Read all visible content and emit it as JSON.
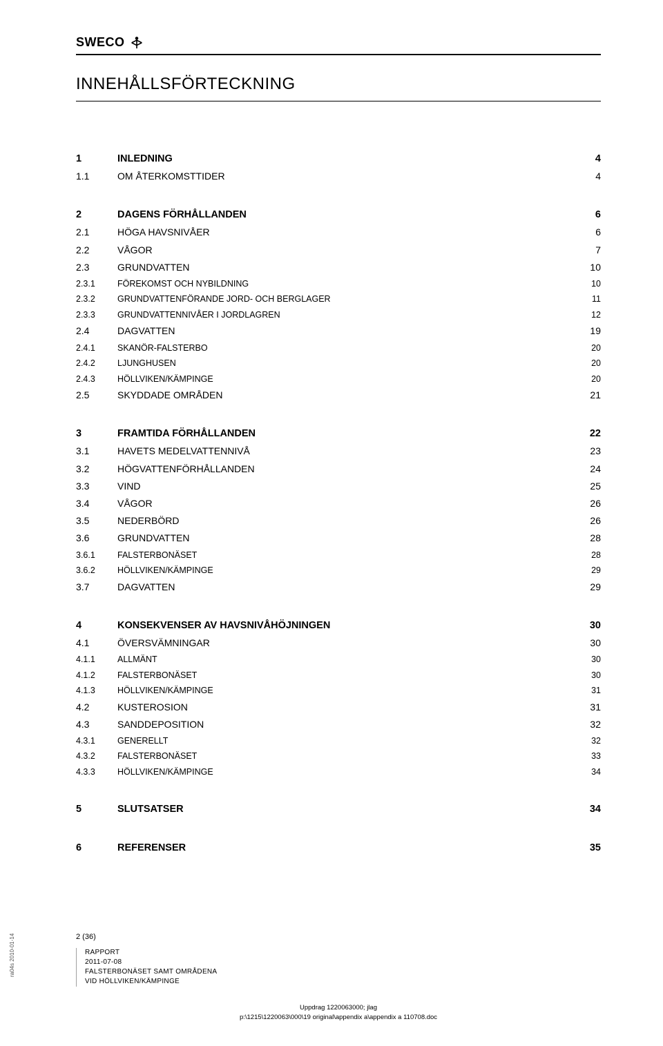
{
  "logo": {
    "text": "SWECO"
  },
  "title": "INNEHÅLLSFÖRTECKNING",
  "toc": [
    {
      "group": [
        {
          "lvl": 1,
          "num": "1",
          "label": "INLEDNING",
          "page": "4"
        },
        {
          "lvl": 2,
          "num": "1.1",
          "label": "OM ÅTERKOMSTTIDER",
          "page": "4"
        }
      ]
    },
    {
      "group": [
        {
          "lvl": 1,
          "num": "2",
          "label": "DAGENS FÖRHÅLLANDEN",
          "page": "6"
        },
        {
          "lvl": 2,
          "num": "2.1",
          "label": "HÖGA HAVSNIVÅER",
          "page": "6"
        },
        {
          "lvl": 2,
          "num": "2.2",
          "label": "VÅGOR",
          "page": "7"
        },
        {
          "lvl": 2,
          "num": "2.3",
          "label": "GRUNDVATTEN",
          "page": "10"
        },
        {
          "lvl": 3,
          "num": "2.3.1",
          "label": "FÖREKOMST OCH NYBILDNING",
          "page": "10"
        },
        {
          "lvl": 3,
          "num": "2.3.2",
          "label": "GRUNDVATTENFÖRANDE JORD- OCH BERGLAGER",
          "page": "11"
        },
        {
          "lvl": 3,
          "num": "2.3.3",
          "label": "GRUNDVATTENNIVÅER I JORDLAGREN",
          "page": "12"
        },
        {
          "lvl": 2,
          "num": "2.4",
          "label": "DAGVATTEN",
          "page": "19"
        },
        {
          "lvl": 3,
          "num": "2.4.1",
          "label": "SKANÖR-FALSTERBO",
          "page": "20"
        },
        {
          "lvl": 3,
          "num": "2.4.2",
          "label": "LJUNGHUSEN",
          "page": "20"
        },
        {
          "lvl": 3,
          "num": "2.4.3",
          "label": "HÖLLVIKEN/KÄMPINGE",
          "page": "20"
        },
        {
          "lvl": 2,
          "num": "2.5",
          "label": "SKYDDADE OMRÅDEN",
          "page": "21"
        }
      ]
    },
    {
      "group": [
        {
          "lvl": 1,
          "num": "3",
          "label": "FRAMTIDA FÖRHÅLLANDEN",
          "page": "22"
        },
        {
          "lvl": 2,
          "num": "3.1",
          "label": "HAVETS MEDELVATTENNIVÅ",
          "page": "23"
        },
        {
          "lvl": 2,
          "num": "3.2",
          "label": "HÖGVATTENFÖRHÅLLANDEN",
          "page": "24"
        },
        {
          "lvl": 2,
          "num": "3.3",
          "label": "VIND",
          "page": "25"
        },
        {
          "lvl": 2,
          "num": "3.4",
          "label": "VÅGOR",
          "page": "26"
        },
        {
          "lvl": 2,
          "num": "3.5",
          "label": "NEDERBÖRD",
          "page": "26"
        },
        {
          "lvl": 2,
          "num": "3.6",
          "label": "GRUNDVATTEN",
          "page": "28"
        },
        {
          "lvl": 3,
          "num": "3.6.1",
          "label": "FALSTERBONÄSET",
          "page": "28"
        },
        {
          "lvl": 3,
          "num": "3.6.2",
          "label": "HÖLLVIKEN/KÄMPINGE",
          "page": "29"
        },
        {
          "lvl": 2,
          "num": "3.7",
          "label": "DAGVATTEN",
          "page": "29"
        }
      ]
    },
    {
      "group": [
        {
          "lvl": 1,
          "num": "4",
          "label": "KONSEKVENSER AV HAVSNIVÅHÖJNINGEN",
          "page": "30"
        },
        {
          "lvl": 2,
          "num": "4.1",
          "label": "ÖVERSVÄMNINGAR",
          "page": "30"
        },
        {
          "lvl": 3,
          "num": "4.1.1",
          "label": "ALLMÄNT",
          "page": "30"
        },
        {
          "lvl": 3,
          "num": "4.1.2",
          "label": "FALSTERBONÄSET",
          "page": "30"
        },
        {
          "lvl": 3,
          "num": "4.1.3",
          "label": "HÖLLVIKEN/KÄMPINGE",
          "page": "31"
        },
        {
          "lvl": 2,
          "num": "4.2",
          "label": "KUSTEROSION",
          "page": "31"
        },
        {
          "lvl": 2,
          "num": "4.3",
          "label": "SANDDEPOSITION",
          "page": "32"
        },
        {
          "lvl": 3,
          "num": "4.3.1",
          "label": "GENERELLT",
          "page": "32"
        },
        {
          "lvl": 3,
          "num": "4.3.2",
          "label": "FALSTERBONÄSET",
          "page": "33"
        },
        {
          "lvl": 3,
          "num": "4.3.3",
          "label": "HÖLLVIKEN/KÄMPINGE",
          "page": "34"
        }
      ]
    },
    {
      "group": [
        {
          "lvl": 1,
          "num": "5",
          "label": "SLUTSATSER",
          "page": "34"
        }
      ]
    },
    {
      "group": [
        {
          "lvl": 1,
          "num": "6",
          "label": "REFERENSER",
          "page": "35"
        }
      ]
    }
  ],
  "footer": {
    "pageno": "2 (36)",
    "line1": "RAPPORT",
    "line2": "2011-07-08",
    "line3": "FALSTERBONÄSET SAMT OMRÅDENA",
    "line4": "VID HÖLLVIKEN/KÄMPINGE",
    "path1": "Uppdrag 1220063000; jlag",
    "path2": "p:\\1215\\1220063\\000\\19 original\\appendix a\\appendix a 110708.doc"
  },
  "side": "ra04s 2010-01-14"
}
